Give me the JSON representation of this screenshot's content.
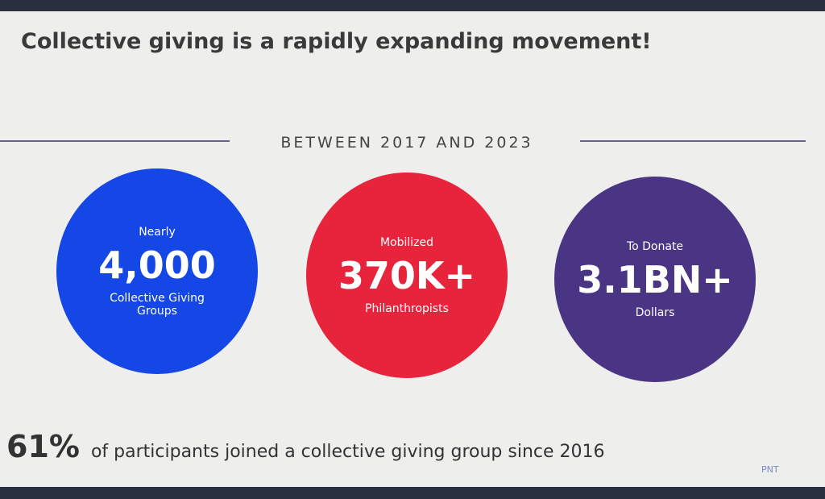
{
  "header": {
    "title": "Collective giving is a rapidly expanding movement!"
  },
  "divider": {
    "label": "BETWEEN 2017 AND 2023"
  },
  "stats": [
    {
      "pre": "Nearly",
      "value": "4,000",
      "post": "Collective Giving Groups",
      "color": "#1447e6"
    },
    {
      "pre": "Mobilized",
      "value": "370K+",
      "post": "Philanthropists",
      "color": "#e8233c"
    },
    {
      "pre": "To Donate",
      "value": "3.1BN+",
      "post": "Dollars",
      "color": "#4a3585"
    }
  ],
  "footer": {
    "figure": "61%",
    "text": "of participants joined a collective giving group since 2016",
    "logo": "PNT"
  }
}
